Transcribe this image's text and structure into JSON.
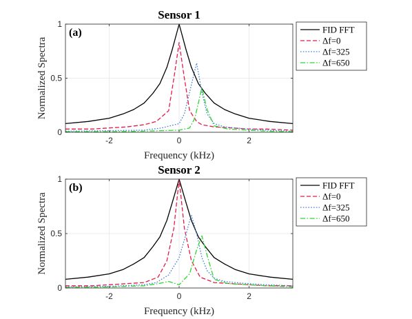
{
  "chart_data": [
    {
      "type": "line",
      "title": "Sensor 1",
      "panel_label": "(a)",
      "xlabel": "Frequency (kHz)",
      "ylabel": "Normalized Spectra",
      "xlim": [
        -3.25,
        3.25
      ],
      "ylim": [
        0,
        1
      ],
      "x_ticks": [
        -2,
        0,
        2
      ],
      "x_tick_labels": [
        "-2",
        "0",
        "2"
      ],
      "y_ticks": [
        0,
        0.5,
        1
      ],
      "y_tick_labels": [
        "0",
        "0.5",
        "1"
      ],
      "grid": true,
      "legend_position": "outside-right",
      "series": [
        {
          "name": "FID FFT",
          "color": "#000000",
          "dash": "solid",
          "x": [
            -3.25,
            -2.6,
            -2.0,
            -1.6,
            -1.3,
            -1.0,
            -0.75,
            -0.55,
            -0.35,
            -0.2,
            0,
            0.2,
            0.35,
            0.55,
            0.75,
            1.0,
            1.3,
            1.6,
            2.0,
            2.6,
            3.25
          ],
          "y": [
            0.08,
            0.1,
            0.13,
            0.17,
            0.21,
            0.27,
            0.36,
            0.45,
            0.6,
            0.76,
            1.0,
            0.76,
            0.6,
            0.45,
            0.36,
            0.27,
            0.21,
            0.17,
            0.13,
            0.1,
            0.08
          ]
        },
        {
          "name": "Δf=0",
          "color": "#e8194a",
          "dash": "dashed",
          "x": [
            -3.25,
            -2.5,
            -2.0,
            -1.5,
            -1.0,
            -0.65,
            -0.3,
            -0.15,
            0,
            0.15,
            0.3,
            0.5,
            0.65,
            1.0,
            1.5,
            2.0,
            2.5,
            3.25
          ],
          "y": [
            0.03,
            0.03,
            0.04,
            0.05,
            0.07,
            0.1,
            0.2,
            0.5,
            0.83,
            0.5,
            0.2,
            0.1,
            0.07,
            0.05,
            0.04,
            0.03,
            0.03,
            0.02
          ]
        },
        {
          "name": "Δf=325",
          "color": "#3f7fd8",
          "dash": "dotted",
          "x": [
            -3.25,
            -2.0,
            -1.0,
            -0.5,
            0,
            0.15,
            0.3,
            0.5,
            0.65,
            0.8,
            1.0,
            1.3,
            1.6,
            2.0,
            2.5,
            3.25
          ],
          "y": [
            0.01,
            0.015,
            0.02,
            0.04,
            0.08,
            0.17,
            0.37,
            0.64,
            0.37,
            0.17,
            0.08,
            0.05,
            0.04,
            0.03,
            0.02,
            0.01
          ]
        },
        {
          "name": "Δf=650",
          "color": "#2fd62f",
          "dash": "dashdot",
          "x": [
            -3.25,
            -2.0,
            -1.0,
            0,
            0.3,
            0.45,
            0.65,
            0.8,
            1.0,
            1.4,
            2.0,
            2.5,
            3.25
          ],
          "y": [
            0.005,
            0.005,
            0.01,
            0.02,
            0.04,
            0.13,
            0.41,
            0.21,
            0.06,
            0.03,
            0.02,
            0.01,
            0.005
          ]
        }
      ]
    },
    {
      "type": "line",
      "title": "Sensor 2",
      "panel_label": "(b)",
      "xlabel": "Frequency (kHz)",
      "ylabel": "Normalized Spectra",
      "xlim": [
        -3.25,
        3.25
      ],
      "ylim": [
        0,
        1
      ],
      "x_ticks": [
        -2,
        0,
        2
      ],
      "x_tick_labels": [
        "-2",
        "0",
        "2"
      ],
      "y_ticks": [
        0,
        0.5,
        1
      ],
      "y_tick_labels": [
        "0",
        "0.5",
        "1"
      ],
      "grid": true,
      "legend_position": "outside-right",
      "series": [
        {
          "name": "FID FFT",
          "color": "#000000",
          "dash": "solid",
          "x": [
            -3.25,
            -2.6,
            -2.0,
            -1.6,
            -1.3,
            -1.0,
            -0.75,
            -0.55,
            -0.35,
            -0.2,
            0,
            0.2,
            0.35,
            0.55,
            0.75,
            1.0,
            1.3,
            1.6,
            2.0,
            2.6,
            3.25
          ],
          "y": [
            0.08,
            0.1,
            0.13,
            0.17,
            0.22,
            0.28,
            0.38,
            0.47,
            0.62,
            0.78,
            1.0,
            0.78,
            0.62,
            0.47,
            0.38,
            0.28,
            0.22,
            0.17,
            0.13,
            0.1,
            0.08
          ]
        },
        {
          "name": "Δf=0",
          "color": "#e8194a",
          "dash": "dashed",
          "x": [
            -3.25,
            -2.5,
            -2.0,
            -1.5,
            -1.0,
            -0.6,
            -0.35,
            -0.15,
            0,
            0.15,
            0.35,
            0.6,
            1.0,
            1.5,
            2.0,
            2.5,
            3.25
          ],
          "y": [
            0.02,
            0.02,
            0.03,
            0.04,
            0.05,
            0.1,
            0.25,
            0.55,
            1.0,
            0.55,
            0.25,
            0.1,
            0.05,
            0.04,
            0.03,
            0.02,
            0.02
          ]
        },
        {
          "name": "Δf=325",
          "color": "#3f7fd8",
          "dash": "dotted",
          "x": [
            -3.25,
            -2.0,
            -1.0,
            -0.65,
            -0.3,
            0,
            0.2,
            0.35,
            0.5,
            0.65,
            0.8,
            1.0,
            1.3,
            1.6,
            2.0,
            2.5,
            3.25
          ],
          "y": [
            0.01,
            0.015,
            0.03,
            0.05,
            0.12,
            0.28,
            0.5,
            0.67,
            0.5,
            0.28,
            0.16,
            0.09,
            0.06,
            0.05,
            0.04,
            0.03,
            0.02
          ]
        },
        {
          "name": "Δf=650",
          "color": "#2fd62f",
          "dash": "dashdot",
          "x": [
            -3.25,
            -2.0,
            -1.0,
            -0.6,
            -0.3,
            0,
            0.3,
            0.5,
            0.65,
            0.8,
            1.0,
            1.4,
            2.0,
            2.5,
            3.25
          ],
          "y": [
            0.005,
            0.01,
            0.02,
            0.04,
            0.06,
            0.03,
            0.13,
            0.35,
            0.48,
            0.3,
            0.08,
            0.04,
            0.03,
            0.02,
            0.01
          ]
        }
      ]
    }
  ]
}
